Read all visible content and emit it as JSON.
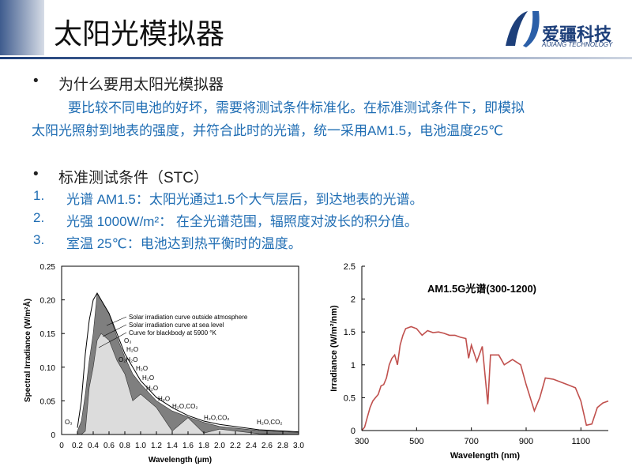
{
  "header": {
    "title": "太阳光模拟器",
    "logo_name": "爱疆科技",
    "logo_sub": "AIJIANG TECHNOLOGY"
  },
  "sections": [
    {
      "heading": "为什么要用太阳光模拟器",
      "paragraph": [
        "要比较不同电池的好坏，需要将测试条件标准化。在标准测试条件下，即模拟",
        "太阳光照射到地表的强度，并符合此时的光谱，统一采用AM1.5，电池温度25℃"
      ]
    },
    {
      "heading": "标准测试条件（STC）",
      "items": [
        {
          "number": "1.",
          "text": "光谱 AM1.5：太阳光通过1.5个大气层后，到达地表的光谱。"
        },
        {
          "number": "2.",
          "text": "光强 1000W/m²：  在全光谱范围，辐照度对波长的积分值。"
        },
        {
          "number": "3.",
          "text": "室温 25℃：电池达到热平衡时的温度。"
        }
      ]
    }
  ],
  "chart_data": [
    {
      "type": "area",
      "xlabel": "Wavelength (μm)",
      "ylabel": "Spectral Irradiance (W/m²Å)",
      "x": [
        0.2,
        0.25,
        0.3,
        0.35,
        0.4,
        0.45,
        0.5,
        0.6,
        0.7,
        0.8,
        0.9,
        1.0,
        1.2,
        1.4,
        1.6,
        1.8,
        2.0,
        2.5,
        3.0
      ],
      "series": [
        {
          "name": "Solar irradiation curve outside atmosphere",
          "color": "#7f7f7f",
          "fill": true,
          "values": [
            0.005,
            0.02,
            0.06,
            0.11,
            0.15,
            0.21,
            0.2,
            0.18,
            0.145,
            0.115,
            0.09,
            0.075,
            0.05,
            0.035,
            0.026,
            0.018,
            0.012,
            0.006,
            0.003
          ]
        },
        {
          "name": "Solar irradiation curve at sea level",
          "color": "#dcdcdc",
          "fill": true,
          "values": [
            0,
            0,
            0.005,
            0.07,
            0.1,
            0.14,
            0.15,
            0.14,
            0.11,
            0.09,
            0.05,
            0.06,
            0.04,
            0.005,
            0.025,
            0.002,
            0.008,
            0.001,
            0
          ]
        },
        {
          "name": "Curve for blackbody at 5900 °K",
          "color": "#000000",
          "fill": false,
          "values": [
            0.01,
            0.05,
            0.12,
            0.17,
            0.2,
            0.21,
            0.2,
            0.18,
            0.15,
            0.12,
            0.1,
            0.08,
            0.055,
            0.04,
            0.028,
            0.02,
            0.015,
            0.007,
            0.004
          ]
        }
      ],
      "annotations": [
        "O₃",
        "H₂O",
        "O₂H₂O",
        "H₂O",
        "H₂O",
        "H₂O",
        "H₂O",
        "H₂O,CO₂",
        "H₂O,CO₂",
        "H₂O,CO₂",
        "O₃"
      ],
      "xlim": [
        0,
        3.0
      ],
      "xticks": [
        0,
        0.2,
        0.4,
        0.6,
        0.8,
        {
          "value": 1,
          "label": "1.0"
        },
        1.2,
        1.4,
        1.6,
        1.8,
        {
          "value": 2,
          "label": "2.0"
        },
        2.2,
        2.4,
        2.6,
        2.8,
        {
          "value": 3,
          "label": "3.0"
        }
      ],
      "ylim": [
        0,
        0.25
      ],
      "yticks": [
        0,
        0.05,
        {
          "value": 0.1,
          "label": "0.10"
        },
        0.15,
        {
          "value": 0.2,
          "label": "0.20"
        },
        0.25
      ]
    },
    {
      "type": "line",
      "title": "AM1.5G光谱(300-1200)",
      "xlabel": "Wavelength (nm)",
      "ylabel": "Irradiance (W/m²/nm)",
      "x": [
        300,
        310,
        320,
        330,
        340,
        350,
        360,
        370,
        380,
        390,
        400,
        410,
        420,
        430,
        440,
        450,
        460,
        480,
        500,
        520,
        540,
        560,
        580,
        600,
        620,
        640,
        660,
        680,
        690,
        700,
        720,
        740,
        760,
        770,
        800,
        820,
        850,
        880,
        900,
        930,
        950,
        970,
        1000,
        1050,
        1080,
        1100,
        1120,
        1140,
        1160,
        1180,
        1200
      ],
      "series": [
        {
          "name": "AM1.5G",
          "color": "#c0504d",
          "values": [
            0,
            0.05,
            0.2,
            0.35,
            0.45,
            0.5,
            0.55,
            0.68,
            0.7,
            0.8,
            1.0,
            1.1,
            1.15,
            1.0,
            1.3,
            1.45,
            1.55,
            1.58,
            1.55,
            1.45,
            1.52,
            1.49,
            1.5,
            1.48,
            1.45,
            1.45,
            1.42,
            1.4,
            1.1,
            1.3,
            1.05,
            1.28,
            0.4,
            1.15,
            1.15,
            1.0,
            1.08,
            1.0,
            0.7,
            0.3,
            0.5,
            0.8,
            0.78,
            0.7,
            0.65,
            0.45,
            0.08,
            0.1,
            0.35,
            0.42,
            0.45
          ]
        }
      ],
      "xlim": [
        300,
        1200
      ],
      "xticks": [
        300,
        500,
        700,
        900,
        1100
      ],
      "ylim": [
        0,
        2.5
      ],
      "yticks": [
        0,
        0.5,
        1,
        1.5,
        2,
        2.5
      ]
    }
  ]
}
